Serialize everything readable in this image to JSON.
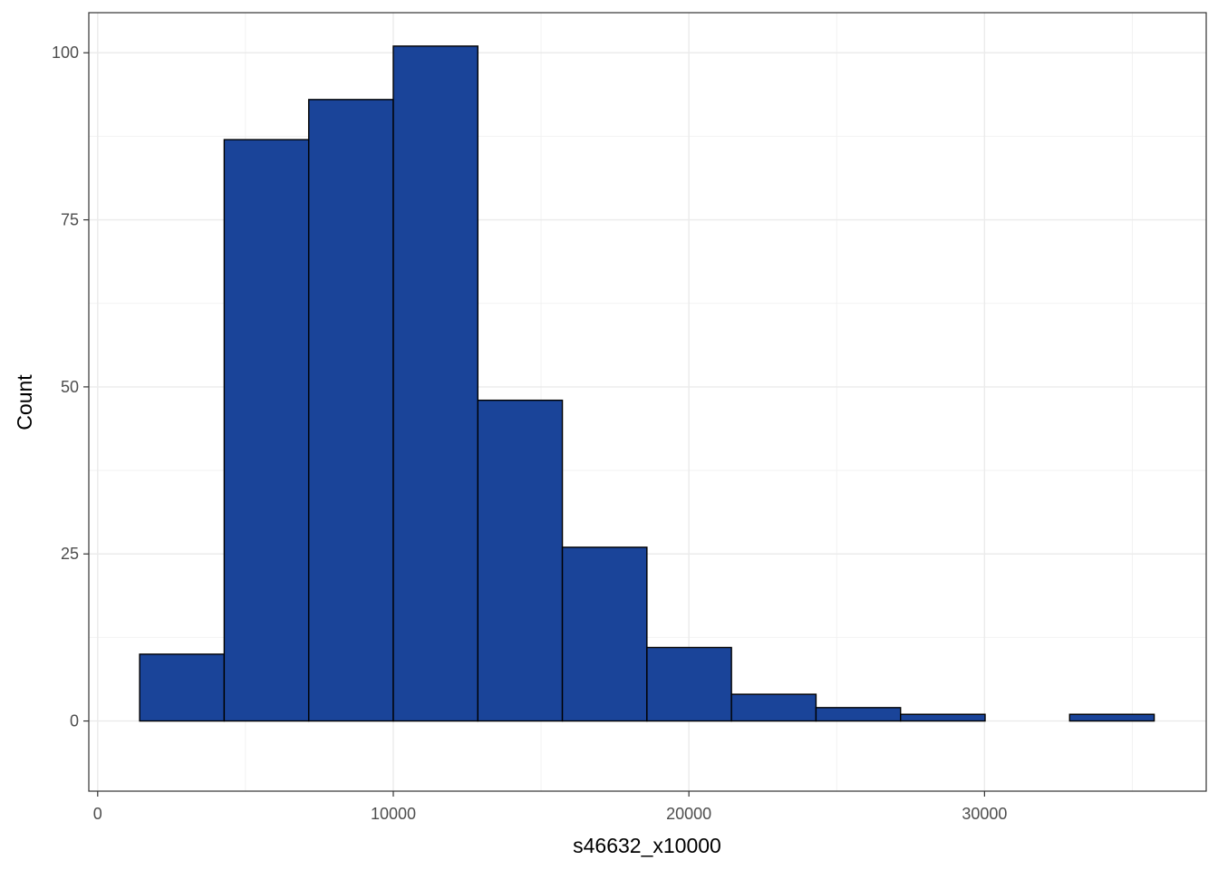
{
  "chart_data": {
    "type": "bar",
    "subtype": "histogram",
    "title": "",
    "xlabel": "s46632_x10000",
    "ylabel": "Count",
    "xlim": [
      -300,
      37500
    ],
    "ylim": [
      -10.5,
      106
    ],
    "x_ticks": [
      0,
      10000,
      20000,
      30000
    ],
    "x_tick_labels": [
      "0",
      "10000",
      "20000",
      "30000"
    ],
    "y_ticks": [
      0,
      25,
      50,
      75,
      100
    ],
    "y_tick_labels": [
      "0",
      "25",
      "50",
      "75",
      "100"
    ],
    "bins": [
      {
        "x0": 1420,
        "x1": 4280,
        "count": 10
      },
      {
        "x0": 4280,
        "x1": 7140,
        "count": 87
      },
      {
        "x0": 7140,
        "x1": 10000,
        "count": 93
      },
      {
        "x0": 10000,
        "x1": 12860,
        "count": 101
      },
      {
        "x0": 12860,
        "x1": 15720,
        "count": 48
      },
      {
        "x0": 15720,
        "x1": 18580,
        "count": 26
      },
      {
        "x0": 18580,
        "x1": 21440,
        "count": 11
      },
      {
        "x0": 21440,
        "x1": 24300,
        "count": 4
      },
      {
        "x0": 24300,
        "x1": 27160,
        "count": 2
      },
      {
        "x0": 27160,
        "x1": 30020,
        "count": 1
      },
      {
        "x0": 30020,
        "x1": 32880,
        "count": 0
      },
      {
        "x0": 32880,
        "x1": 35740,
        "count": 1
      }
    ],
    "fill_color": "#1a4499",
    "stroke_color": "#000000",
    "grid": true,
    "theme": "bw"
  }
}
